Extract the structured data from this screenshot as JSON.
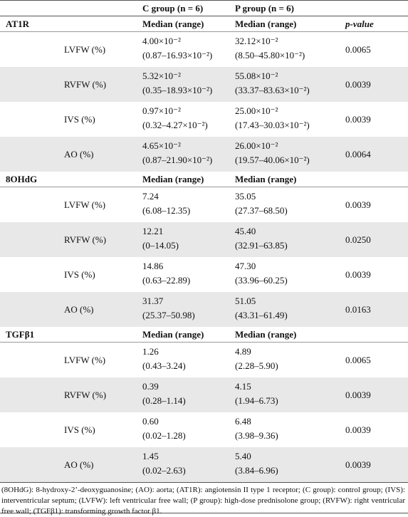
{
  "table": {
    "header": [
      "C group (n = 6)",
      "P group (n = 6)"
    ],
    "sections": [
      {
        "name": "AT1R",
        "columns": [
          "Median (range)",
          "Median (range)",
          "p-value"
        ],
        "rows": [
          {
            "label": "LVFW (%)",
            "c": [
              "4.00×10⁻²",
              "(0.87–16.93×10⁻²)"
            ],
            "p": [
              "32.12×10⁻²",
              "(8.50–45.80×10⁻²)"
            ],
            "p_value": "0.0065"
          },
          {
            "label": "RVFW (%)",
            "c": [
              "5.32×10⁻²",
              "(0.35–18.93×10⁻²)"
            ],
            "p": [
              "55.08×10⁻²",
              "(33.37–83.63×10⁻²)"
            ],
            "p_value": "0.0039"
          },
          {
            "label": "IVS (%)",
            "c": [
              "0.97×10⁻²",
              "(0.32–4.27×10⁻²)"
            ],
            "p": [
              "25.00×10⁻²",
              "(17.43–30.03×10⁻²)"
            ],
            "p_value": "0.0039"
          },
          {
            "label": "AO (%)",
            "c": [
              "4.65×10⁻²",
              "(0.87–21.90×10⁻²)"
            ],
            "p": [
              "26.00×10⁻²",
              "(19.57–40.06×10⁻²)"
            ],
            "p_value": "0.0064"
          }
        ]
      },
      {
        "name": "8OHdG",
        "columns": [
          "Median (range)",
          "Median (range)"
        ],
        "rows": [
          {
            "label": "LVFW (%)",
            "c": [
              "7.24",
              "(6.08–12.35)"
            ],
            "p": [
              "35.05",
              "(27.37–68.50)"
            ],
            "p_value": "0.0039"
          },
          {
            "label": "RVFW (%)",
            "c": [
              "12.21",
              "(0–14.05)"
            ],
            "p": [
              "45.40",
              "(32.91–63.85)"
            ],
            "p_value": "0.0250"
          },
          {
            "label": "IVS (%)",
            "c": [
              "14.86",
              "(0.63–22.89)"
            ],
            "p": [
              "47.30",
              "(33.96–60.25)"
            ],
            "p_value": "0.0039"
          },
          {
            "label": "AO (%)",
            "c": [
              "31.37",
              "(25.37–50.98)"
            ],
            "p": [
              "51.05",
              "(43.31–61.49)"
            ],
            "p_value": "0.0163"
          }
        ]
      },
      {
        "name": "TGFβ1",
        "columns": [
          "Median (range)",
          "Median (range)"
        ],
        "rows": [
          {
            "label": "LVFW (%)",
            "c": [
              "1.26",
              "(0.43–3.24)"
            ],
            "p": [
              "4.89",
              "(2.28–5.90)"
            ],
            "p_value": "0.0065"
          },
          {
            "label": "RVFW (%)",
            "c": [
              "0.39",
              "(0.28–1.14)"
            ],
            "p": [
              "4.15",
              "(1.94–6.73)"
            ],
            "p_value": "0.0039"
          },
          {
            "label": "IVS (%)",
            "c": [
              "0.60",
              "(0.02–1.28)"
            ],
            "p": [
              "6.48",
              "(3.98–9.36)"
            ],
            "p_value": "0.0039"
          },
          {
            "label": "AO (%)",
            "c": [
              "1.45",
              "(0.02–2.63)"
            ],
            "p": [
              "5.40",
              "(3.84–6.96)"
            ],
            "p_value": "0.0039"
          }
        ]
      }
    ]
  },
  "footnote": "(8OHdG): 8-hydroxy-2’-deoxyguanosine; (AO): aorta; (AT1R): angiotensin II type 1 receptor; (C group): control group; (IVS): interventricular septum; (LVFW): left ventricular free wall; (P group): high-dose prednisolone group; (RVFW): right ventricular free wall; (TGFβ1): transforming growth factor β1."
}
